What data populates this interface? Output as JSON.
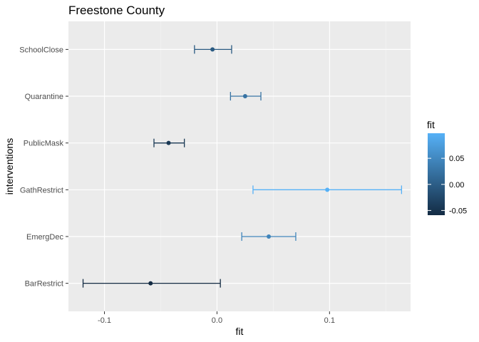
{
  "chart_data": {
    "type": "errorbar",
    "title": "Freestone County",
    "xlabel": "fit",
    "ylabel": "interventions",
    "xlim": [
      -0.132,
      0.172
    ],
    "x_ticks": [
      {
        "value": -0.1,
        "label": "-0.1"
      },
      {
        "value": 0.0,
        "label": "0.0"
      },
      {
        "value": 0.1,
        "label": "0.1"
      }
    ],
    "categories": [
      "SchoolClose",
      "Quarantine",
      "PublicMask",
      "GathRestrict",
      "EmergDec",
      "BarRestrict"
    ],
    "points": [
      {
        "category": "SchoolClose",
        "fit": -0.004,
        "lower": -0.02,
        "upper": 0.013
      },
      {
        "category": "Quarantine",
        "fit": 0.025,
        "lower": 0.012,
        "upper": 0.039
      },
      {
        "category": "PublicMask",
        "fit": -0.043,
        "lower": -0.056,
        "upper": -0.029
      },
      {
        "category": "GathRestrict",
        "fit": 0.098,
        "lower": 0.032,
        "upper": 0.164
      },
      {
        "category": "EmergDec",
        "fit": 0.046,
        "lower": 0.022,
        "upper": 0.07
      },
      {
        "category": "BarRestrict",
        "fit": -0.059,
        "lower": -0.119,
        "upper": 0.003
      }
    ],
    "grid": true,
    "legend": {
      "title": "fit",
      "placement": "right",
      "range": [
        -0.059,
        0.098
      ],
      "ticks": [
        {
          "value": 0.05,
          "label": "0.05"
        },
        {
          "value": 0.0,
          "label": "0.00"
        },
        {
          "value": -0.05,
          "label": "-0.05"
        }
      ],
      "low_color": "#132B43",
      "high_color": "#56B1F7"
    }
  }
}
